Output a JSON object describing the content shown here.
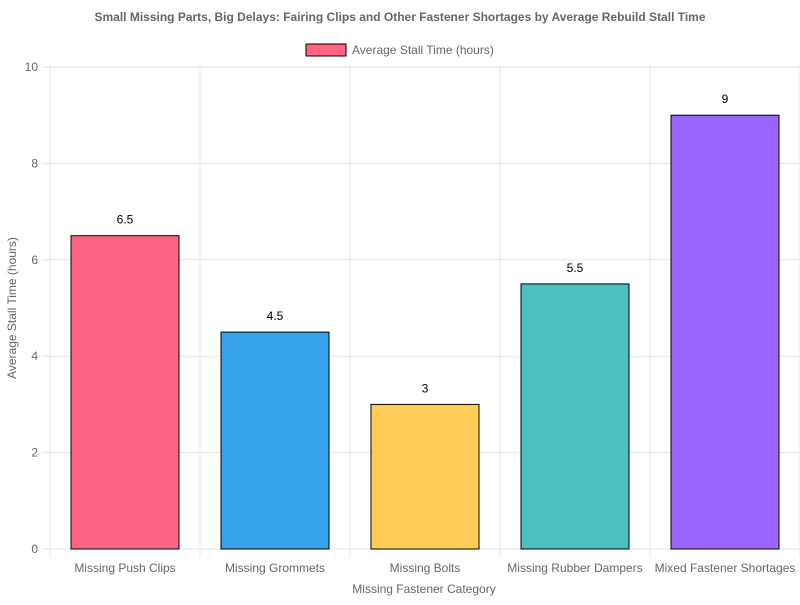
{
  "chart_data": {
    "type": "bar",
    "title": "Small Missing Parts, Big Delays: Fairing Clips and Other Fastener Shortages by Average Rebuild Stall Time",
    "xlabel": "Missing Fastener Category",
    "ylabel": "Average Stall Time (hours)",
    "ylim": [
      0,
      10
    ],
    "yticks": [
      0,
      2,
      4,
      6,
      8,
      10
    ],
    "grid": true,
    "legend_position": "top",
    "categories": [
      "Missing Push Clips",
      "Missing Grommets",
      "Missing Bolts",
      "Missing Rubber Dampers",
      "Mixed Fastener Shortages"
    ],
    "series": [
      {
        "name": "Average Stall Time (hours)",
        "values": [
          6.5,
          4.5,
          3,
          5.5,
          9
        ],
        "data_labels": [
          "6.5",
          "4.5",
          "3",
          "5.5",
          "9"
        ],
        "colors": [
          "#ff6384",
          "#36a2eb",
          "#ffcd56",
          "#4bc0c0",
          "#9966ff"
        ]
      }
    ]
  }
}
